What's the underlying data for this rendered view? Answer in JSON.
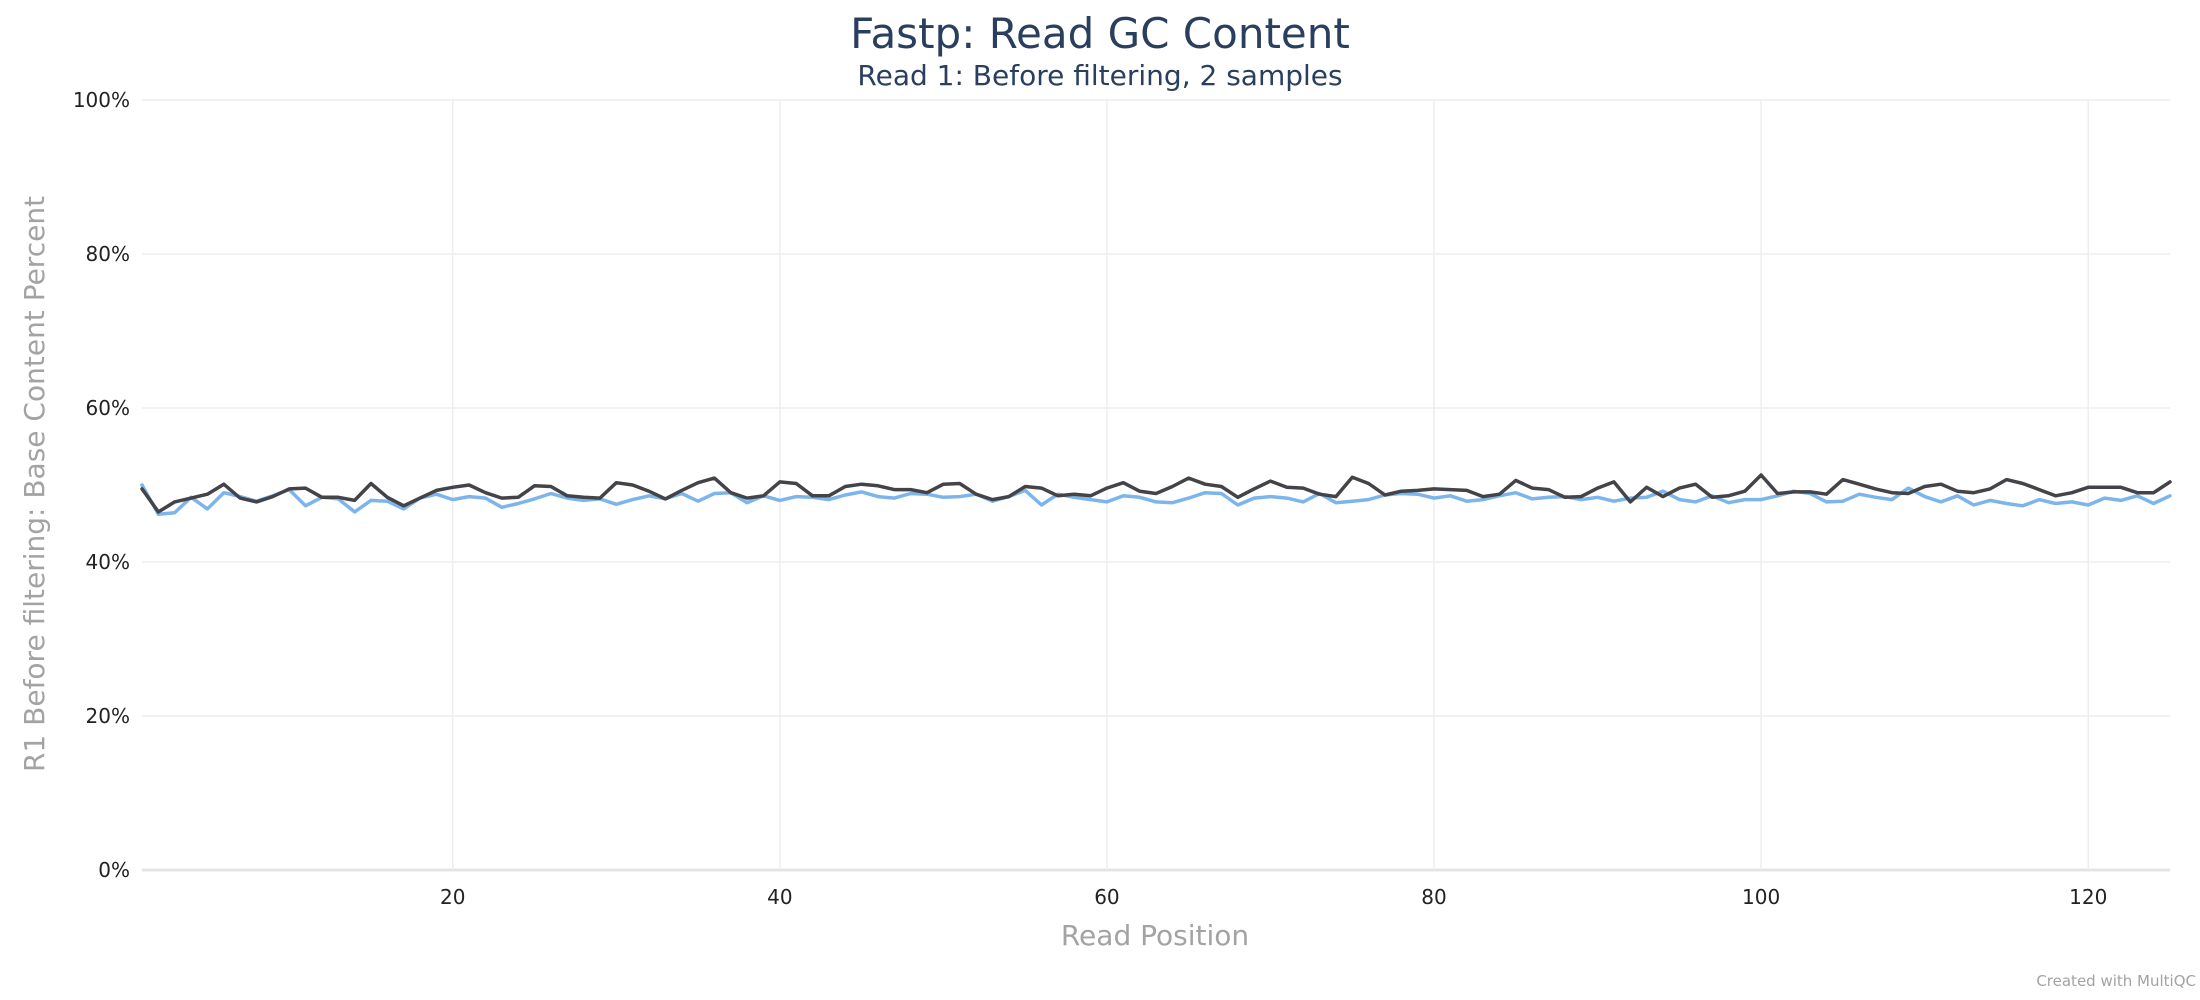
{
  "chart_data": {
    "type": "line",
    "title": "Fastp: Read GC Content",
    "subtitle": "Read 1: Before filtering, 2 samples",
    "xlabel": "Read Position",
    "ylabel": "R1 Before filtering: Base Content Percent",
    "xlim": [
      1,
      125
    ],
    "ylim": [
      0,
      100
    ],
    "x_ticks": [
      20,
      40,
      60,
      80,
      100,
      120
    ],
    "y_ticks": [
      0,
      20,
      40,
      60,
      80,
      100
    ],
    "y_tick_labels": [
      "0%",
      "20%",
      "40%",
      "60%",
      "80%",
      "100%"
    ],
    "grid": true,
    "legend": "none",
    "x": [
      1,
      2,
      3,
      4,
      5,
      6,
      7,
      8,
      9,
      10,
      11,
      12,
      13,
      14,
      15,
      16,
      17,
      18,
      19,
      20,
      21,
      22,
      23,
      24,
      25,
      26,
      27,
      28,
      29,
      30,
      31,
      32,
      33,
      34,
      35,
      36,
      37,
      38,
      39,
      40,
      41,
      42,
      43,
      44,
      45,
      46,
      47,
      48,
      49,
      50,
      51,
      52,
      53,
      54,
      55,
      56,
      57,
      58,
      59,
      60,
      61,
      62,
      63,
      64,
      65,
      66,
      67,
      68,
      69,
      70,
      71,
      72,
      73,
      74,
      75,
      76,
      77,
      78,
      79,
      80,
      81,
      82,
      83,
      84,
      85,
      86,
      87,
      88,
      89,
      90,
      91,
      92,
      93,
      94,
      95,
      96,
      97,
      98,
      99,
      100,
      101,
      102,
      103,
      104,
      105,
      106,
      107,
      108,
      109,
      110,
      111,
      112,
      113,
      114,
      115,
      116,
      117,
      118,
      119,
      120,
      121,
      122,
      123,
      124,
      125
    ],
    "series": [
      {
        "color": "#7cb5ec",
        "values": [
          50.0,
          46.2,
          46.4,
          48.4,
          46.9,
          49.0,
          48.5,
          47.9,
          48.6,
          49.4,
          47.3,
          48.4,
          48.2,
          46.5,
          48.0,
          47.9,
          46.9,
          48.3,
          48.8,
          48.1,
          48.5,
          48.3,
          47.1,
          47.6,
          48.2,
          48.9,
          48.3,
          48.0,
          48.2,
          47.5,
          48.1,
          48.6,
          48.2,
          48.9,
          47.9,
          48.9,
          49.0,
          47.7,
          48.6,
          48.0,
          48.5,
          48.4,
          48.1,
          48.7,
          49.1,
          48.5,
          48.3,
          48.9,
          48.8,
          48.4,
          48.5,
          48.8,
          47.9,
          48.5,
          49.3,
          47.4,
          48.8,
          48.4,
          48.1,
          47.8,
          48.6,
          48.4,
          47.8,
          47.7,
          48.3,
          49.0,
          48.9,
          47.4,
          48.3,
          48.5,
          48.3,
          47.8,
          48.9,
          47.7,
          47.9,
          48.1,
          48.7,
          48.9,
          48.8,
          48.3,
          48.6,
          47.9,
          48.1,
          48.6,
          49.0,
          48.2,
          48.4,
          48.5,
          48.1,
          48.4,
          47.9,
          48.3,
          48.4,
          49.2,
          48.1,
          47.8,
          48.6,
          47.7,
          48.1,
          48.1,
          48.6,
          49.2,
          48.9,
          47.8,
          47.9,
          48.8,
          48.4,
          48.1,
          49.6,
          48.5,
          47.8,
          48.6,
          47.4,
          48.0,
          47.6,
          47.3,
          48.1,
          47.6,
          47.8,
          47.4,
          48.3,
          48.0,
          48.6,
          47.6,
          48.6
        ]
      },
      {
        "color": "#434348",
        "values": [
          49.5,
          46.5,
          47.8,
          48.3,
          48.8,
          50.1,
          48.3,
          47.8,
          48.5,
          49.5,
          49.6,
          48.4,
          48.4,
          48.0,
          50.2,
          48.4,
          47.3,
          48.3,
          49.3,
          49.7,
          50.0,
          49.0,
          48.3,
          48.4,
          49.9,
          49.8,
          48.6,
          48.4,
          48.3,
          50.3,
          50.0,
          49.2,
          48.2,
          49.3,
          50.3,
          50.9,
          49.0,
          48.3,
          48.6,
          50.4,
          50.2,
          48.6,
          48.6,
          49.8,
          50.1,
          49.9,
          49.4,
          49.4,
          49.0,
          50.1,
          50.2,
          48.8,
          48.1,
          48.5,
          49.8,
          49.6,
          48.6,
          48.8,
          48.6,
          49.6,
          50.3,
          49.2,
          48.9,
          49.8,
          50.9,
          50.1,
          49.8,
          48.4,
          49.5,
          50.5,
          49.7,
          49.6,
          48.8,
          48.5,
          51.0,
          50.2,
          48.7,
          49.2,
          49.3,
          49.5,
          49.4,
          49.3,
          48.5,
          48.8,
          50.6,
          49.6,
          49.4,
          48.4,
          48.5,
          49.6,
          50.4,
          47.8,
          49.7,
          48.5,
          49.6,
          50.1,
          48.4,
          48.6,
          49.2,
          51.3,
          48.9,
          49.1,
          49.1,
          48.8,
          50.7,
          50.1,
          49.5,
          49.0,
          48.9,
          49.8,
          50.1,
          49.2,
          49.0,
          49.5,
          50.7,
          50.2,
          49.4,
          48.6,
          49.0,
          49.7,
          49.7,
          49.7,
          49.0,
          49.0,
          50.4
        ]
      }
    ]
  },
  "credit": "Created with MultiQC"
}
